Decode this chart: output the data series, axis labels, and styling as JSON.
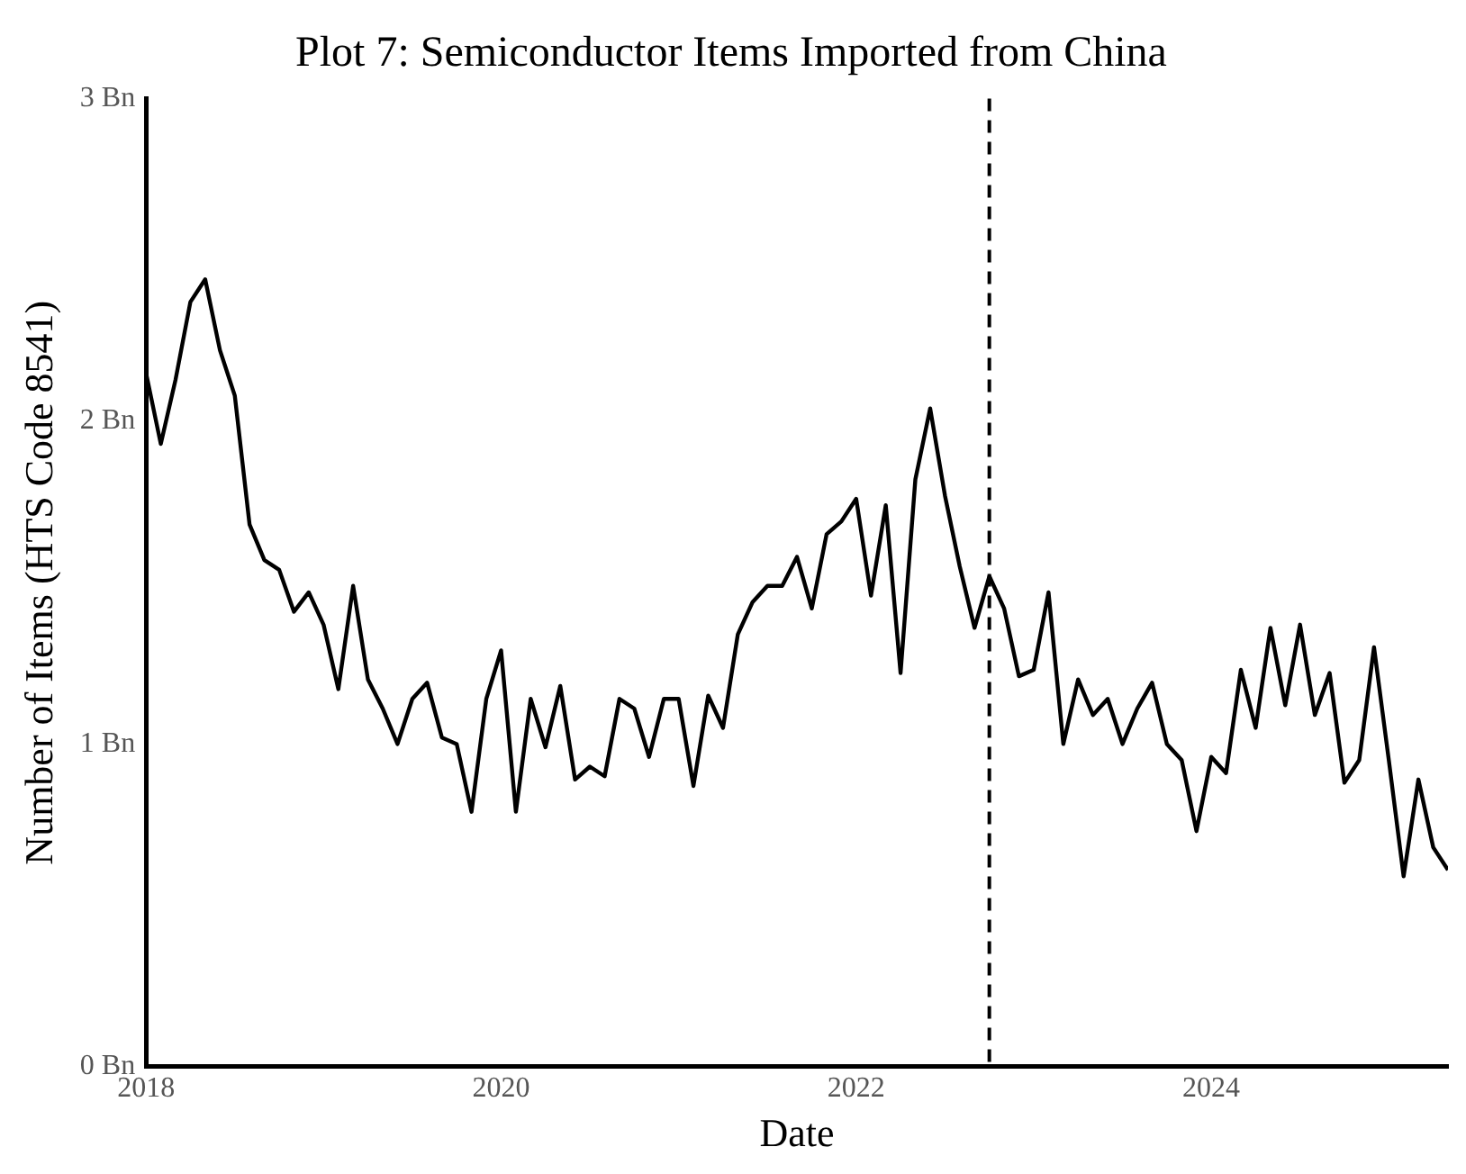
{
  "chart_data": {
    "type": "line",
    "title": "Plot 7: Semiconductor Items Imported from China",
    "xlabel": "Date",
    "ylabel": "Number of Items (HTS Code 8541)",
    "x": [
      "2018-01",
      "2018-02",
      "2018-03",
      "2018-04",
      "2018-05",
      "2018-06",
      "2018-07",
      "2018-08",
      "2018-09",
      "2018-10",
      "2018-11",
      "2018-12",
      "2019-01",
      "2019-02",
      "2019-03",
      "2019-04",
      "2019-05",
      "2019-06",
      "2019-07",
      "2019-08",
      "2019-09",
      "2019-10",
      "2019-11",
      "2019-12",
      "2020-01",
      "2020-02",
      "2020-03",
      "2020-04",
      "2020-05",
      "2020-06",
      "2020-07",
      "2020-08",
      "2020-09",
      "2020-10",
      "2020-11",
      "2020-12",
      "2021-01",
      "2021-02",
      "2021-03",
      "2021-04",
      "2021-05",
      "2021-06",
      "2021-07",
      "2021-08",
      "2021-09",
      "2021-10",
      "2021-11",
      "2021-12",
      "2022-01",
      "2022-02",
      "2022-03",
      "2022-04",
      "2022-05",
      "2022-06",
      "2022-07",
      "2022-08",
      "2022-09",
      "2022-10",
      "2022-11",
      "2022-12",
      "2023-01",
      "2023-02",
      "2023-03",
      "2023-04",
      "2023-05",
      "2023-06",
      "2023-07",
      "2023-08",
      "2023-09",
      "2023-10",
      "2023-11",
      "2023-12",
      "2024-01",
      "2024-02",
      "2024-03",
      "2024-04",
      "2024-05",
      "2024-06",
      "2024-07",
      "2024-08",
      "2024-09",
      "2024-10",
      "2024-11",
      "2024-12",
      "2025-01",
      "2025-02",
      "2025-03",
      "2025-04",
      "2025-05"
    ],
    "series": [
      {
        "color": "#000000",
        "values": [
          2.15,
          1.93,
          2.13,
          2.37,
          2.44,
          2.22,
          2.08,
          1.68,
          1.57,
          1.54,
          1.41,
          1.47,
          1.37,
          1.17,
          1.49,
          1.2,
          1.11,
          1.0,
          1.14,
          1.19,
          1.02,
          1.0,
          0.79,
          1.14,
          1.29,
          0.79,
          1.14,
          0.99,
          1.18,
          0.89,
          0.93,
          0.9,
          1.14,
          1.11,
          0.96,
          1.14,
          1.14,
          0.87,
          1.15,
          1.05,
          1.34,
          1.44,
          1.49,
          1.49,
          1.58,
          1.42,
          1.65,
          1.69,
          1.76,
          1.46,
          1.74,
          1.22,
          1.82,
          2.04,
          1.77,
          1.55,
          1.36,
          1.52,
          1.42,
          1.21,
          1.23,
          1.47,
          1.0,
          1.2,
          1.09,
          1.14,
          1.0,
          1.11,
          1.19,
          1.0,
          0.95,
          0.73,
          0.96,
          0.91,
          1.23,
          1.05,
          1.36,
          1.12,
          1.37,
          1.09,
          1.22,
          0.88,
          0.95,
          1.3,
          0.95,
          0.59,
          0.89,
          0.68,
          0.61
        ]
      }
    ],
    "xlim": [
      "2018-01",
      "2025-05"
    ],
    "xticks": [
      "2018",
      "2020",
      "2022",
      "2024"
    ],
    "ylim": [
      0,
      3
    ],
    "yticks": [
      {
        "value": 0,
        "label": "0 Bn"
      },
      {
        "value": 1,
        "label": "1 Bn"
      },
      {
        "value": 2,
        "label": "2 Bn"
      },
      {
        "value": 3,
        "label": "3 Bn"
      }
    ],
    "ref_lines": [
      {
        "axis": "x",
        "value": "2022-10",
        "color": "#000000",
        "line_style": "dashed"
      }
    ],
    "grid": false,
    "legend": false,
    "marker": "none",
    "line_style": "solid"
  }
}
